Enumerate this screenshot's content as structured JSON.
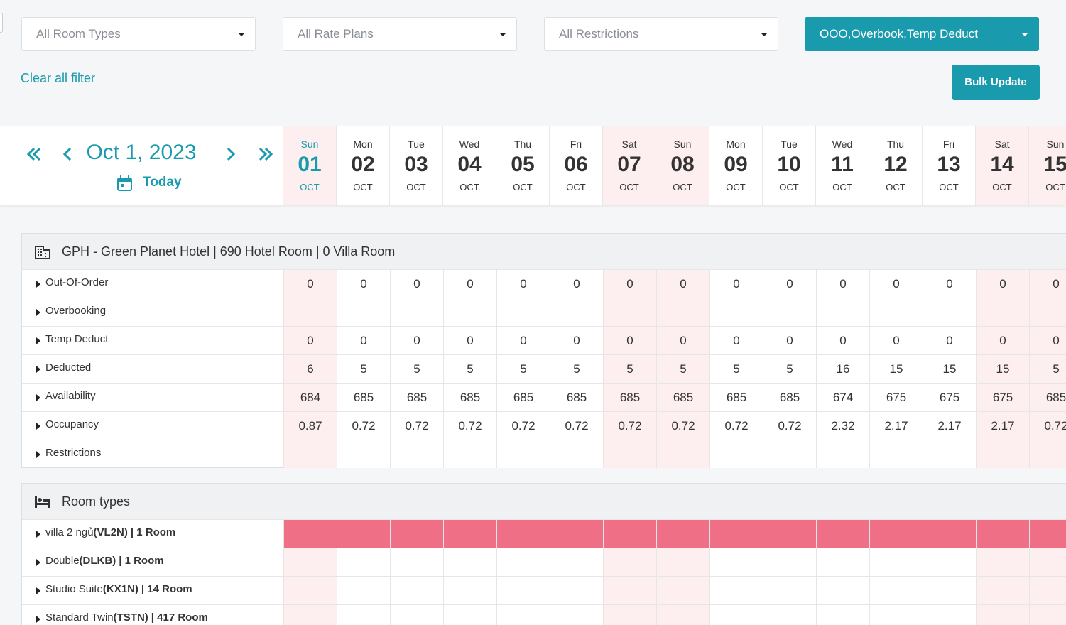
{
  "filters": [
    "All Room Types",
    "All Rate Plans",
    "All Restrictions",
    "OOO,Overbook,Temp Deduct"
  ],
  "clear_filter": "Clear all filter",
  "bulk_update": "Bulk Update",
  "date_nav": {
    "date": "Oct 1, 2023",
    "today": "Today"
  },
  "days": [
    {
      "weekday": "Sun",
      "day": "01",
      "month": "OCT",
      "highlight": true,
      "selected": true
    },
    {
      "weekday": "Mon",
      "day": "02",
      "month": "OCT"
    },
    {
      "weekday": "Tue",
      "day": "03",
      "month": "OCT"
    },
    {
      "weekday": "Wed",
      "day": "04",
      "month": "OCT"
    },
    {
      "weekday": "Thu",
      "day": "05",
      "month": "OCT"
    },
    {
      "weekday": "Fri",
      "day": "06",
      "month": "OCT"
    },
    {
      "weekday": "Sat",
      "day": "07",
      "month": "OCT",
      "highlight": true
    },
    {
      "weekday": "Sun",
      "day": "08",
      "month": "OCT",
      "highlight": true
    },
    {
      "weekday": "Mon",
      "day": "09",
      "month": "OCT"
    },
    {
      "weekday": "Tue",
      "day": "10",
      "month": "OCT"
    },
    {
      "weekday": "Wed",
      "day": "11",
      "month": "OCT"
    },
    {
      "weekday": "Thu",
      "day": "12",
      "month": "OCT"
    },
    {
      "weekday": "Fri",
      "day": "13",
      "month": "OCT"
    },
    {
      "weekday": "Sat",
      "day": "14",
      "month": "OCT",
      "highlight": true
    },
    {
      "weekday": "Sun",
      "day": "15",
      "month": "OCT",
      "highlight": true
    }
  ],
  "hotel": {
    "title": "GPH - Green Planet Hotel | 690 Hotel Room | 0 Villa Room",
    "rows": [
      {
        "label": "Out-Of-Order",
        "values": [
          0,
          0,
          0,
          0,
          0,
          0,
          0,
          0,
          0,
          0,
          0,
          0,
          0,
          0,
          0
        ]
      },
      {
        "label": "Overbooking"
      },
      {
        "label": "Temp Deduct",
        "values": [
          0,
          0,
          0,
          0,
          0,
          0,
          0,
          0,
          0,
          0,
          0,
          0,
          0,
          0,
          0
        ]
      },
      {
        "label": "Deducted",
        "values": [
          6,
          5,
          5,
          5,
          5,
          5,
          5,
          5,
          5,
          5,
          16,
          15,
          15,
          15,
          5
        ]
      },
      {
        "label": "Availability",
        "values": [
          684,
          685,
          685,
          685,
          685,
          685,
          685,
          685,
          685,
          685,
          674,
          675,
          675,
          675,
          685
        ]
      },
      {
        "label": "Occupancy",
        "values": [
          0.87,
          0.72,
          0.72,
          0.72,
          0.72,
          0.72,
          0.72,
          0.72,
          0.72,
          0.72,
          2.32,
          2.17,
          2.17,
          2.17,
          0.72
        ]
      },
      {
        "label": "Restrictions"
      }
    ]
  },
  "room_types": {
    "title": "Room types",
    "rows": [
      {
        "name": "villa 2 ngủ",
        "code": "(VL2N)",
        "rooms": "| 1 Room",
        "color": "#ef6f86"
      },
      {
        "name": "Double",
        "code": "(DLKB)",
        "rooms": "| 1 Room"
      },
      {
        "name": "Studio Suite",
        "code": "(KX1N)",
        "rooms": "| 14 Room"
      },
      {
        "name": "Standard Twin",
        "code": "(TSTN)",
        "rooms": "| 417 Room"
      }
    ]
  }
}
